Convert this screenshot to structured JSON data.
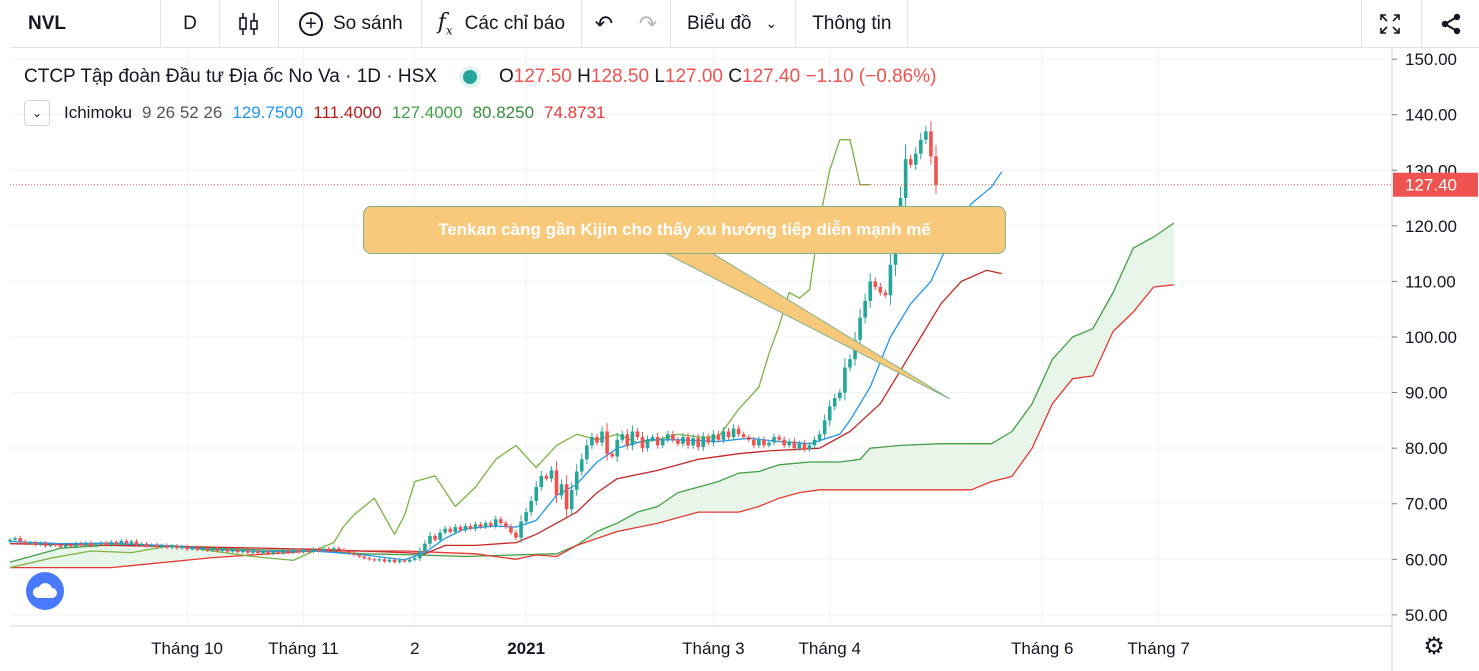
{
  "toolbar": {
    "symbol": "NVL",
    "interval": "D",
    "compare": "So sánh",
    "indicators": "Các chỉ báo",
    "chart_type": "Biểu đồ",
    "info": "Thông tin"
  },
  "legend": {
    "name": "CTCP Tập đoàn Đầu tư Địa ốc No Va",
    "interval": "1D",
    "exchange": "HSX",
    "o_label": "O",
    "o": "127.50",
    "h_label": "H",
    "h": "128.50",
    "l_label": "L",
    "l": "127.00",
    "c_label": "C",
    "c": "127.40",
    "change": "−1.10 (−0.86%)"
  },
  "indicator": {
    "name": "Ichimoku",
    "params": "9 26 52 26",
    "values": [
      "129.7500",
      "111.4000",
      "127.4000",
      "80.8250",
      "74.8731"
    ],
    "colors": [
      "#2196f3",
      "#b71c1c",
      "#43a047",
      "#388e3c",
      "#e53935"
    ]
  },
  "annotation": "Tenkan càng gần Kijin cho thấy xu hướng tiếp diễn mạnh mẽ",
  "colors": {
    "up": "#26a69a",
    "down": "#ef5350",
    "tenkan": "#2196f3",
    "kijun": "#c62828",
    "chikou": "#7cb342",
    "span_a": "#43a047",
    "span_b": "#e53935",
    "cloud_up": "#e8f5e9",
    "cloud_down": "#ffebee"
  },
  "chart_data": {
    "type": "candlestick",
    "ylim": [
      48,
      152
    ],
    "yticks": [
      "50.00",
      "60.00",
      "70.00",
      "80.00",
      "90.00",
      "100.00",
      "110.00",
      "120.00",
      "130.00",
      "140.00",
      "150.00"
    ],
    "ytick_values": [
      50,
      60,
      70,
      80,
      90,
      100,
      110,
      120,
      130,
      140,
      150
    ],
    "price_label": "127.40",
    "last_price": 127.4,
    "xticks": [
      {
        "label": "Tháng 10",
        "bar": 35
      },
      {
        "label": "Tháng 11",
        "bar": 58
      },
      {
        "label": "2",
        "bar": 80
      },
      {
        "label": "2021",
        "bar": 102
      },
      {
        "label": "Tháng 3",
        "bar": 139
      },
      {
        "label": "Tháng 4",
        "bar": 162
      },
      {
        "label": "Tháng 6",
        "bar": 204
      },
      {
        "label": "Tháng 7",
        "bar": 227
      }
    ],
    "closes": [
      63.5,
      63.8,
      63.2,
      62.8,
      63,
      62.6,
      62.9,
      62.4,
      62.7,
      62.5,
      62.2,
      62.6,
      62.3,
      62.8,
      62.5,
      62.9,
      62.4,
      62.7,
      63,
      62.6,
      63.1,
      62.8,
      63.3,
      62.9,
      63.2,
      62.6,
      62.8,
      62.4,
      62.6,
      62.2,
      62.5,
      62.1,
      62.4,
      62,
      62.3,
      61.8,
      62.1,
      61.7,
      62,
      61.6,
      61.9,
      61.5,
      61.8,
      61.4,
      61.7,
      61.3,
      61.6,
      61.2,
      61.5,
      61.1,
      61.4,
      61,
      61.3,
      61.1,
      61.5,
      61.2,
      61.6,
      61.3,
      61.7,
      61.4,
      61.8,
      61.5,
      61.9,
      61.6,
      62,
      61.7,
      61.4,
      61.1,
      60.8,
      60.5,
      60.2,
      60,
      59.8,
      60,
      59.6,
      59.9,
      59.5,
      59.8,
      59.6,
      59.9,
      60.2,
      61.5,
      62.8,
      64.2,
      63.5,
      64.8,
      65.5,
      64.9,
      65.8,
      65.2,
      66,
      65.5,
      66.3,
      65.8,
      66.5,
      66,
      67.2,
      66.5,
      65.8,
      64.8,
      63.9,
      66.8,
      68.5,
      70.5,
      73,
      75,
      74.5,
      76,
      71.5,
      73.5,
      69,
      72.5,
      75.8,
      78,
      80.5,
      82,
      81,
      83,
      79,
      78.5,
      81.5,
      82.5,
      80.5,
      83,
      82,
      80,
      81.5,
      82,
      80.5,
      81.5,
      82.5,
      81.5,
      80.8,
      82,
      80.5,
      81.8,
      80.2,
      82,
      81,
      82.5,
      81.5,
      83,
      82,
      83.5,
      82.5,
      82,
      81.5,
      80.5,
      81.5,
      80.5,
      81,
      82,
      81.5,
      80.5,
      81.2,
      80,
      80.8,
      79.8,
      80.5,
      81.5,
      82.5,
      85,
      87.5,
      89,
      90,
      94.5,
      96,
      99.5,
      103.5,
      106.5,
      110,
      109,
      108,
      107.5,
      113,
      119.5,
      125,
      132,
      131,
      133,
      135.5,
      137,
      132.5,
      127.4
    ],
    "tenkan": [
      [
        0,
        63.2
      ],
      [
        10,
        62.8
      ],
      [
        20,
        62.9
      ],
      [
        30,
        62.5
      ],
      [
        40,
        61.8
      ],
      [
        50,
        61.4
      ],
      [
        60,
        61.5
      ],
      [
        70,
        60.8
      ],
      [
        78,
        59.9
      ],
      [
        82,
        61.2
      ],
      [
        86,
        63.8
      ],
      [
        90,
        65.5
      ],
      [
        96,
        66
      ],
      [
        100,
        65.8
      ],
      [
        104,
        67
      ],
      [
        108,
        71.5
      ],
      [
        112,
        73.5
      ],
      [
        116,
        77.5
      ],
      [
        120,
        80
      ],
      [
        126,
        81.5
      ],
      [
        132,
        81.5
      ],
      [
        140,
        81.2
      ],
      [
        146,
        81.8
      ],
      [
        152,
        81.2
      ],
      [
        158,
        80.8
      ],
      [
        164,
        82.5
      ],
      [
        166,
        85
      ],
      [
        170,
        91
      ],
      [
        174,
        100
      ],
      [
        178,
        106
      ],
      [
        182,
        110
      ],
      [
        186,
        118
      ],
      [
        190,
        124
      ],
      [
        194,
        127
      ],
      [
        196,
        129.75
      ]
    ],
    "kijun": [
      [
        0,
        62.8
      ],
      [
        20,
        62.5
      ],
      [
        40,
        62.2
      ],
      [
        60,
        61.8
      ],
      [
        78,
        61.2
      ],
      [
        82,
        61
      ],
      [
        86,
        62.5
      ],
      [
        92,
        62.5
      ],
      [
        100,
        63
      ],
      [
        104,
        64.5
      ],
      [
        108,
        66.5
      ],
      [
        112,
        68.5
      ],
      [
        116,
        72
      ],
      [
        120,
        74.5
      ],
      [
        128,
        76
      ],
      [
        136,
        78
      ],
      [
        144,
        79
      ],
      [
        150,
        79.5
      ],
      [
        160,
        80
      ],
      [
        166,
        83
      ],
      [
        172,
        88
      ],
      [
        176,
        94
      ],
      [
        180,
        100
      ],
      [
        184,
        106
      ],
      [
        188,
        110
      ],
      [
        193,
        112
      ],
      [
        196,
        111.4
      ]
    ],
    "chikou": [
      [
        0,
        58.5
      ],
      [
        8,
        60.2
      ],
      [
        16,
        61.5
      ],
      [
        24,
        61.2
      ],
      [
        32,
        62.5
      ],
      [
        40,
        61.5
      ],
      [
        48,
        60.5
      ],
      [
        56,
        59.8
      ],
      [
        60,
        61.5
      ],
      [
        64,
        63
      ],
      [
        66,
        66
      ],
      [
        68,
        68
      ],
      [
        72,
        71
      ],
      [
        76,
        64.5
      ],
      [
        78,
        68
      ],
      [
        80,
        74
      ],
      [
        84,
        75
      ],
      [
        88,
        69.5
      ],
      [
        92,
        73
      ],
      [
        96,
        78
      ],
      [
        100,
        80.5
      ],
      [
        104,
        76.5
      ],
      [
        108,
        80.5
      ],
      [
        112,
        82.5
      ],
      [
        116,
        81.5
      ],
      [
        120,
        82.5
      ],
      [
        124,
        81
      ],
      [
        128,
        81.5
      ],
      [
        132,
        82.5
      ],
      [
        136,
        82
      ],
      [
        140,
        82
      ],
      [
        144,
        87
      ],
      [
        148,
        91
      ],
      [
        150,
        97
      ],
      [
        152,
        102
      ],
      [
        154,
        108
      ],
      [
        156,
        107
      ],
      [
        158,
        108.5
      ],
      [
        160,
        121
      ],
      [
        162,
        130
      ],
      [
        164,
        135.5
      ],
      [
        166,
        135.5
      ],
      [
        168,
        127.4
      ],
      [
        170,
        127.4
      ]
    ],
    "span_a": [
      [
        0,
        59.5
      ],
      [
        10,
        62
      ],
      [
        20,
        62.6
      ],
      [
        30,
        62.5
      ],
      [
        40,
        62
      ],
      [
        50,
        61.7
      ],
      [
        60,
        61.5
      ],
      [
        70,
        61
      ],
      [
        80,
        60.8
      ],
      [
        90,
        60.5
      ],
      [
        100,
        60.8
      ],
      [
        108,
        61
      ],
      [
        112,
        62.5
      ],
      [
        116,
        65
      ],
      [
        120,
        66.5
      ],
      [
        124,
        68.5
      ],
      [
        128,
        69.5
      ],
      [
        132,
        72
      ],
      [
        136,
        73
      ],
      [
        140,
        74
      ],
      [
        144,
        75.5
      ],
      [
        148,
        75.8
      ],
      [
        152,
        77
      ],
      [
        158,
        77.5
      ],
      [
        164,
        77.5
      ],
      [
        168,
        78
      ],
      [
        170,
        80
      ],
      [
        176,
        80.5
      ],
      [
        184,
        80.8
      ],
      [
        190,
        80.8
      ],
      [
        194,
        80.8
      ],
      [
        198,
        83
      ],
      [
        202,
        88
      ],
      [
        206,
        96
      ],
      [
        210,
        100
      ],
      [
        214,
        101.5
      ],
      [
        218,
        108
      ],
      [
        222,
        116
      ],
      [
        226,
        118
      ],
      [
        230,
        120.5
      ]
    ],
    "span_b": [
      [
        0,
        58.5
      ],
      [
        20,
        58.5
      ],
      [
        40,
        60.3
      ],
      [
        60,
        61.5
      ],
      [
        78,
        61.5
      ],
      [
        92,
        61
      ],
      [
        100,
        60
      ],
      [
        104,
        60.8
      ],
      [
        108,
        60.5
      ],
      [
        112,
        62.5
      ],
      [
        120,
        65
      ],
      [
        128,
        66.5
      ],
      [
        136,
        68.5
      ],
      [
        144,
        68.5
      ],
      [
        148,
        69.5
      ],
      [
        152,
        71
      ],
      [
        156,
        72
      ],
      [
        160,
        72.5
      ],
      [
        164,
        72.5
      ],
      [
        170,
        72.5
      ],
      [
        180,
        72.5
      ],
      [
        190,
        72.5
      ],
      [
        194,
        74
      ],
      [
        198,
        74.9
      ],
      [
        202,
        80
      ],
      [
        206,
        88
      ],
      [
        210,
        92.5
      ],
      [
        214,
        93
      ],
      [
        218,
        101
      ],
      [
        222,
        104.5
      ],
      [
        226,
        109
      ],
      [
        230,
        109.4
      ]
    ]
  }
}
